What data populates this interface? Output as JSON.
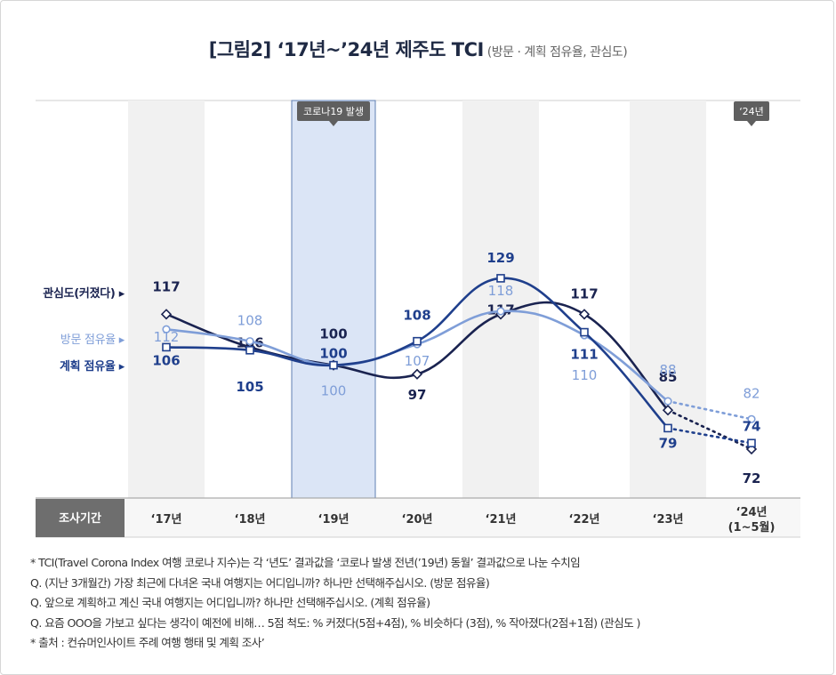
{
  "title": "[그림2] ‘17년~’24년 제주도 TCI",
  "subtitle": "(방문 · 계획 점유율, 관심도)",
  "period_label": "조사기간",
  "notes": [
    "* TCI(Travel Corona Index 여행 코로나 지수)는 각 ‘년도’ 결과값을 ‘코로나 발생 전년(’19년) 동월’ 결과값으로 나눈 수치임",
    "Q. (지난 3개월간) 가장 최근에 다녀온 국내 여행지는 어디입니까? 하나만 선택해주십시오. (방문 점유율)",
    "Q. 앞으로 계획하고 계신 국내 여행지는 어디입니까? 하나만 선택해주십시오. (계획 점유율)",
    "Q. 요즘 OOO을 가보고 싶다는 생각이 예전에 비해… 5점 척도: % 커졌다(5점+4점), % 비슷하다 (3점), % 작아졌다(2점+1점) (관심도 )",
    "* 출처 : 컨슈머인사이트 주례 여행 행태 및 계획 조사’"
  ],
  "colors": {
    "interest": "#1a2350",
    "visit": "#7f9ed8",
    "plan": "#1f3f8c",
    "highlight_band": "#dbe5f6",
    "stripe": "#f1f1f1",
    "period_box": "#6e6e6e",
    "badge": "#5f5f5f"
  },
  "chart_data": {
    "type": "line",
    "categories": [
      "‘17년",
      "‘18년",
      "‘19년",
      "‘20년",
      "‘21년",
      "‘22년",
      "‘23년",
      "‘24년\n(1~5월)"
    ],
    "annotations": [
      {
        "label": "코로나19 발생",
        "category": "‘19년"
      },
      {
        "label": "‘24년",
        "category": "‘24년\n(1~5월)"
      }
    ],
    "series": [
      {
        "name": "관심도(커졌다) ▸",
        "key": "interest",
        "marker": "diamond",
        "values": [
          117,
          106,
          100,
          97,
          117,
          117,
          85,
          72
        ],
        "dashed_last_segment": true
      },
      {
        "name": "방문 점유율 ▸",
        "key": "visit",
        "marker": "circle",
        "values": [
          112,
          108,
          100,
          107,
          118,
          110,
          88,
          82
        ],
        "dashed_last_segment": true
      },
      {
        "name": "계획 점유율 ▸",
        "key": "plan",
        "marker": "square",
        "values": [
          106,
          105,
          100,
          108,
          129,
          111,
          79,
          74
        ],
        "dashed_last_segment": true
      }
    ]
  }
}
